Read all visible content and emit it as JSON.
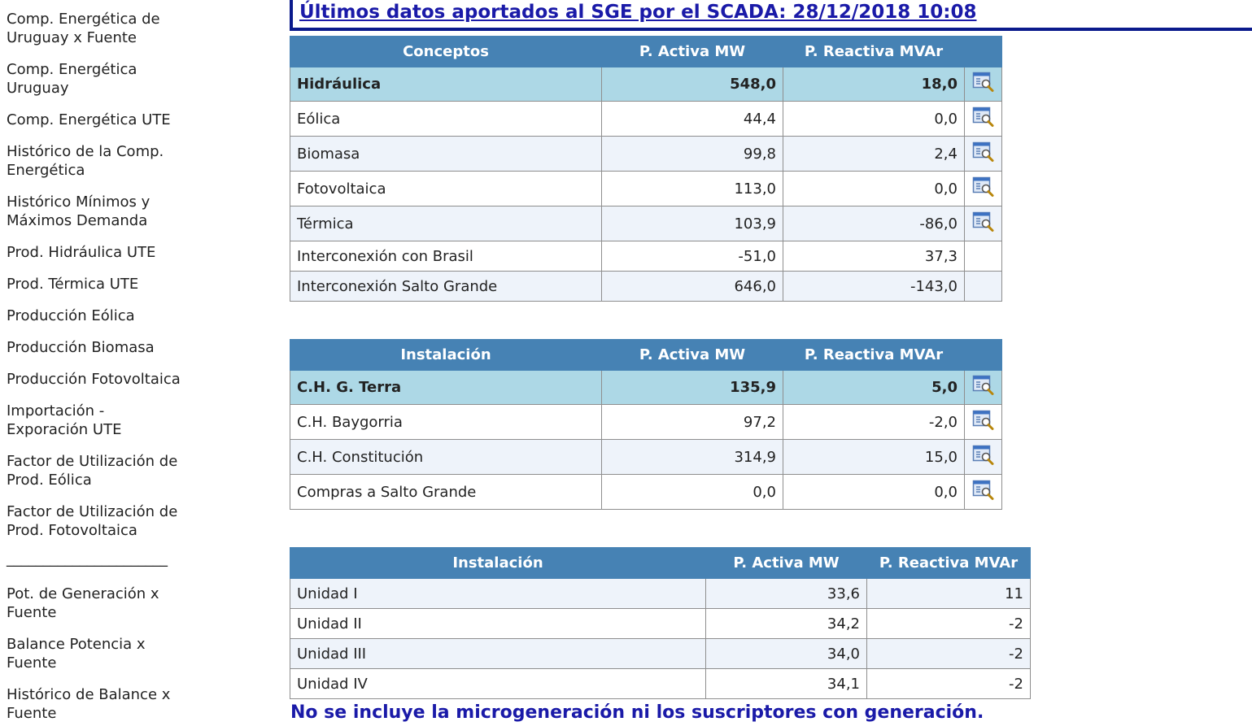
{
  "sidebar": {
    "items": [
      {
        "line1": "Comp. Energética de",
        "line2": "Uruguay x Fuente"
      },
      {
        "line1": "Comp. Energética",
        "line2": "Uruguay"
      },
      {
        "line1": "Comp. Energética UTE",
        "line2": ""
      },
      {
        "line1": "Histórico de la Comp.",
        "line2": "Energética"
      },
      {
        "line1": "Histórico Mínimos y",
        "line2": "Máximos Demanda"
      },
      {
        "line1": "Prod. Hidráulica UTE",
        "line2": ""
      },
      {
        "line1": "Prod. Térmica UTE",
        "line2": ""
      },
      {
        "line1": "Producción Eólica",
        "line2": ""
      },
      {
        "line1": "Producción Biomasa",
        "line2": ""
      },
      {
        "line1": "Producción Fotovoltaica",
        "line2": ""
      },
      {
        "line1": "Importación -",
        "line2": "Exporación UTE"
      },
      {
        "line1": "Factor de Utilización de",
        "line2": "Prod. Eólica"
      },
      {
        "line1": "Factor de Utilización de",
        "line2": "Prod. Fotovoltaica"
      }
    ],
    "separator": "______________________",
    "items2": [
      {
        "line1": "Pot. de Generación x",
        "line2": "Fuente"
      },
      {
        "line1": "Balance Potencia x",
        "line2": "Fuente"
      },
      {
        "line1": "Histórico de Balance x",
        "line2": "Fuente"
      }
    ]
  },
  "header": {
    "title": "Últimos datos aportados al SGE por el SCADA: 28/12/2018 10:08"
  },
  "table1": {
    "headers": [
      "Conceptos",
      "P. Activa MW",
      "P. Reactiva MVAr"
    ],
    "rows": [
      {
        "name": "Hidráulica",
        "activa": "548,0",
        "reactiva": "18,0",
        "icon": true
      },
      {
        "name": "Eólica",
        "activa": "44,4",
        "reactiva": "0,0",
        "icon": true
      },
      {
        "name": "Biomasa",
        "activa": "99,8",
        "reactiva": "2,4",
        "icon": true
      },
      {
        "name": "Fotovoltaica",
        "activa": "113,0",
        "reactiva": "0,0",
        "icon": true
      },
      {
        "name": "Térmica",
        "activa": "103,9",
        "reactiva": "-86,0",
        "icon": true
      },
      {
        "name": "Interconexión con Brasil",
        "activa": "-51,0",
        "reactiva": "37,3",
        "icon": false
      },
      {
        "name": "Interconexión Salto Grande",
        "activa": "646,0",
        "reactiva": "-143,0",
        "icon": false
      }
    ]
  },
  "table2": {
    "headers": [
      "Instalación",
      "P. Activa MW",
      "P. Reactiva MVAr"
    ],
    "rows": [
      {
        "name": "C.H. G. Terra",
        "activa": "135,9",
        "reactiva": "5,0",
        "icon": true
      },
      {
        "name": "C.H. Baygorria",
        "activa": "97,2",
        "reactiva": "-2,0",
        "icon": true
      },
      {
        "name": "C.H. Constitución",
        "activa": "314,9",
        "reactiva": "15,0",
        "icon": true
      },
      {
        "name": "Compras a Salto Grande",
        "activa": "0,0",
        "reactiva": "0,0",
        "icon": true
      }
    ]
  },
  "table3": {
    "headers": [
      "Instalación",
      "P. Activa MW",
      "P. Reactiva MVAr"
    ],
    "rows": [
      {
        "name": "Unidad I",
        "activa": "33,6",
        "reactiva": "11"
      },
      {
        "name": "Unidad II",
        "activa": "34,2",
        "reactiva": "-2"
      },
      {
        "name": "Unidad III",
        "activa": "34,0",
        "reactiva": "-2"
      },
      {
        "name": "Unidad IV",
        "activa": "34,1",
        "reactiva": "-2"
      }
    ]
  },
  "footnote": "No se incluye la microgeneración ni los suscriptores con generación.",
  "colors": {
    "header_bg": "#4682b4",
    "highlight_bg": "#add8e6",
    "title": "#1a1aa8"
  },
  "icons": {
    "detail": "detail-magnifier-icon"
  }
}
